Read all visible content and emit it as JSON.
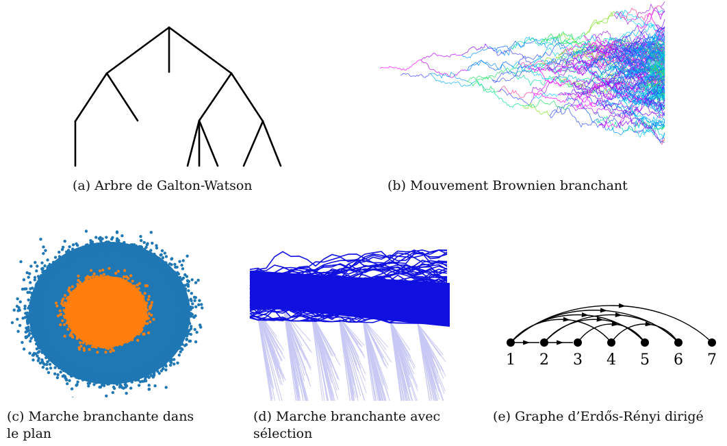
{
  "captions": {
    "a": "(a)  Arbre de Galton-Watson",
    "b": "(b)  Mouvement Brownien branchant",
    "c_line1": "(c)  Marche branchante dans",
    "c_line2": "le plan",
    "d_line1": "(d)  Marche branchante avec",
    "d_line2": "sélection",
    "e": "(e)  Graphe d’Erdős-Rényi dirigé"
  },
  "graph": {
    "nodes": [
      "1",
      "2",
      "3",
      "4",
      "5",
      "6",
      "7"
    ],
    "edges": [
      [
        1,
        2
      ],
      [
        2,
        3
      ],
      [
        1,
        4
      ],
      [
        1,
        5
      ],
      [
        1,
        6
      ],
      [
        1,
        7
      ],
      [
        2,
        5
      ],
      [
        2,
        6
      ],
      [
        4,
        6
      ],
      [
        3,
        5
      ]
    ]
  },
  "colors": {
    "tree": "#000000",
    "planar_outer": "#1f77b4",
    "planar_inner": "#ff7f0e",
    "selection_dark": "#1010e0",
    "selection_light": "#c8c8f4"
  }
}
